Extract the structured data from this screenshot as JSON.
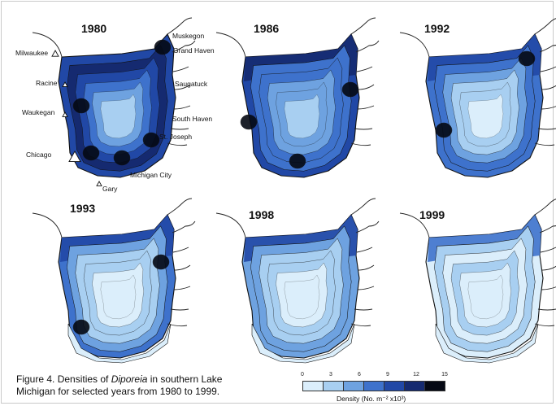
{
  "figure": {
    "caption_prefix": "Figure 4. Densities of ",
    "caption_species": "Diporeia",
    "caption_suffix": " in southern Lake Michigan for selected years from 1980 to 1999.",
    "legend_title": "Density (No. m⁻² x10³)",
    "legend_ticks": [
      "0",
      "3",
      "6",
      "9",
      "12",
      "15"
    ],
    "colors": [
      "#dbeefb",
      "#a8cff1",
      "#6ea2e0",
      "#3e72cc",
      "#2148a6",
      "#152a70",
      "#050914"
    ]
  },
  "panels": [
    {
      "year": "1980"
    },
    {
      "year": "1986"
    },
    {
      "year": "1992"
    },
    {
      "year": "1993"
    },
    {
      "year": "1998"
    },
    {
      "year": "1999"
    }
  ],
  "towns": {
    "milwaukee": "Milwaukee",
    "racine": "Racine",
    "waukegan": "Waukegan",
    "chicago": "Chicago",
    "gary": "Gary",
    "michigan_city": "Michigan City",
    "st_joseph": "St. Joseph",
    "south_haven": "South Haven",
    "saugatuck": "Saugatuck",
    "grand_haven": "Grand Haven",
    "muskegon": "Muskegon"
  }
}
